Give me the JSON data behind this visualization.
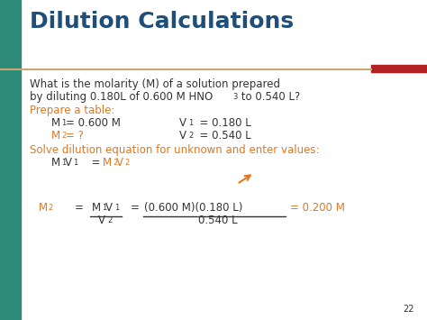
{
  "title": "Dilution Calculations",
  "title_color": "#1F4E79",
  "title_fontsize": 18,
  "bg_color": "#FFFFFF",
  "left_bar_color": "#2E8B7A",
  "separator_color": "#C8A870",
  "red_bar_color": "#B22222",
  "orange_color": "#E07820",
  "black_color": "#333333",
  "slide_number": "22",
  "prepare_label": "Prepare a table:",
  "solve_label": "Solve dilution equation for unknown and enter values:"
}
